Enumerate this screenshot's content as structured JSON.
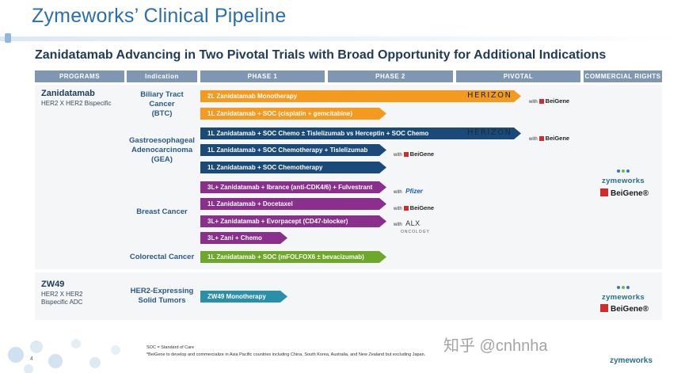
{
  "header": {
    "title": "Zymeworks’ Clinical Pipeline",
    "subtitle": "Zanidatamab Advancing in Two Pivotal Trials with Broad Opportunity for Additional Indications"
  },
  "columns": [
    "PROGRAMS",
    "Indication",
    "PHASE 1",
    "PHASE 2",
    "PIVOTAL",
    "COMMERCIAL RIGHTS"
  ],
  "programs": [
    {
      "name": "Zanidatamab",
      "sub": [
        "HER2 X HER2 Bispecific"
      ]
    },
    {
      "name": "ZW49",
      "sub": [
        "HER2 X HER2",
        "Bispecific ADC"
      ]
    }
  ],
  "indications": [
    {
      "lines": [
        "Biliary Tract",
        "Cancer",
        "(BTC)"
      ]
    },
    {
      "lines": [
        "Gastroesophageal",
        "Adenocarcinoma",
        "(GEA)"
      ]
    },
    {
      "lines": [
        "Breast Cancer"
      ]
    },
    {
      "lines": [
        "Colorectal Cancer"
      ]
    },
    {
      "lines": [
        "HER2-Expressing",
        "Solid Tumors"
      ]
    }
  ],
  "trials": [
    {
      "label": "2L Zanidatamab Monotherapy",
      "color": "#f39a1f"
    },
    {
      "label": "1L Zanidatamab + SOC (cisplatin + gemcitabine)",
      "color": "#f39a1f"
    },
    {
      "label": "1L Zanidatamab + SOC Chemo ± Tislelizumab vs Herceptin + SOC Chemo",
      "color": "#1a4a7a"
    },
    {
      "label": "1L Zanidatamab + SOC Chemotherapy + Tislelizumab",
      "color": "#1a4a7a"
    },
    {
      "label": "1L Zanidatamab + SOC Chemotherapy",
      "color": "#1a4a7a"
    },
    {
      "label": "3L+ Zanidatamab + Ibrance (anti-CDK4/6) + Fulvestrant",
      "color": "#8a2f8e"
    },
    {
      "label": "1L Zanidatamab + Docetaxel",
      "color": "#8a2f8e"
    },
    {
      "label": "3L+ Zanidatamab + Evorpacept (CD47-blocker)",
      "color": "#8a2f8e"
    },
    {
      "label": "3L+ Zani + Chemo",
      "color": "#8a2f8e"
    },
    {
      "label": "1L Zanidatamab + SOC (mFOLFOX6 ± bevacizumab)",
      "color": "#6da82a"
    },
    {
      "label": "ZW49 Monotherapy",
      "color": "#2a8fa8"
    }
  ],
  "trial_marks": {
    "horizon": "HERIZON"
  },
  "partners": {
    "with": "with",
    "beigene": "BeiGene",
    "pfizer": "Pfizer",
    "alx": "ALX",
    "alx_sub": "ONCOLOGY"
  },
  "rights": {
    "zymeworks": "zymeworks",
    "beigene": "BeiGene®"
  },
  "footer": {
    "page": "4",
    "note1": "SOC = Standard of Care",
    "note2": "*BeiGene to develop and commercialize in Asia Pacific countries including China, South Korea, Australia, and New Zealand but excluding Japan.",
    "brand": "zymeworks",
    "watermark": "知乎 @cnhnha"
  },
  "colors": {
    "header_bg": "#7f97b2",
    "title": "#2a6fb0",
    "btc": "#f39a1f",
    "gea": "#1a4a7a",
    "breast": "#8a2f8e",
    "colorectal": "#6da82a",
    "zw49": "#2a8fa8"
  }
}
